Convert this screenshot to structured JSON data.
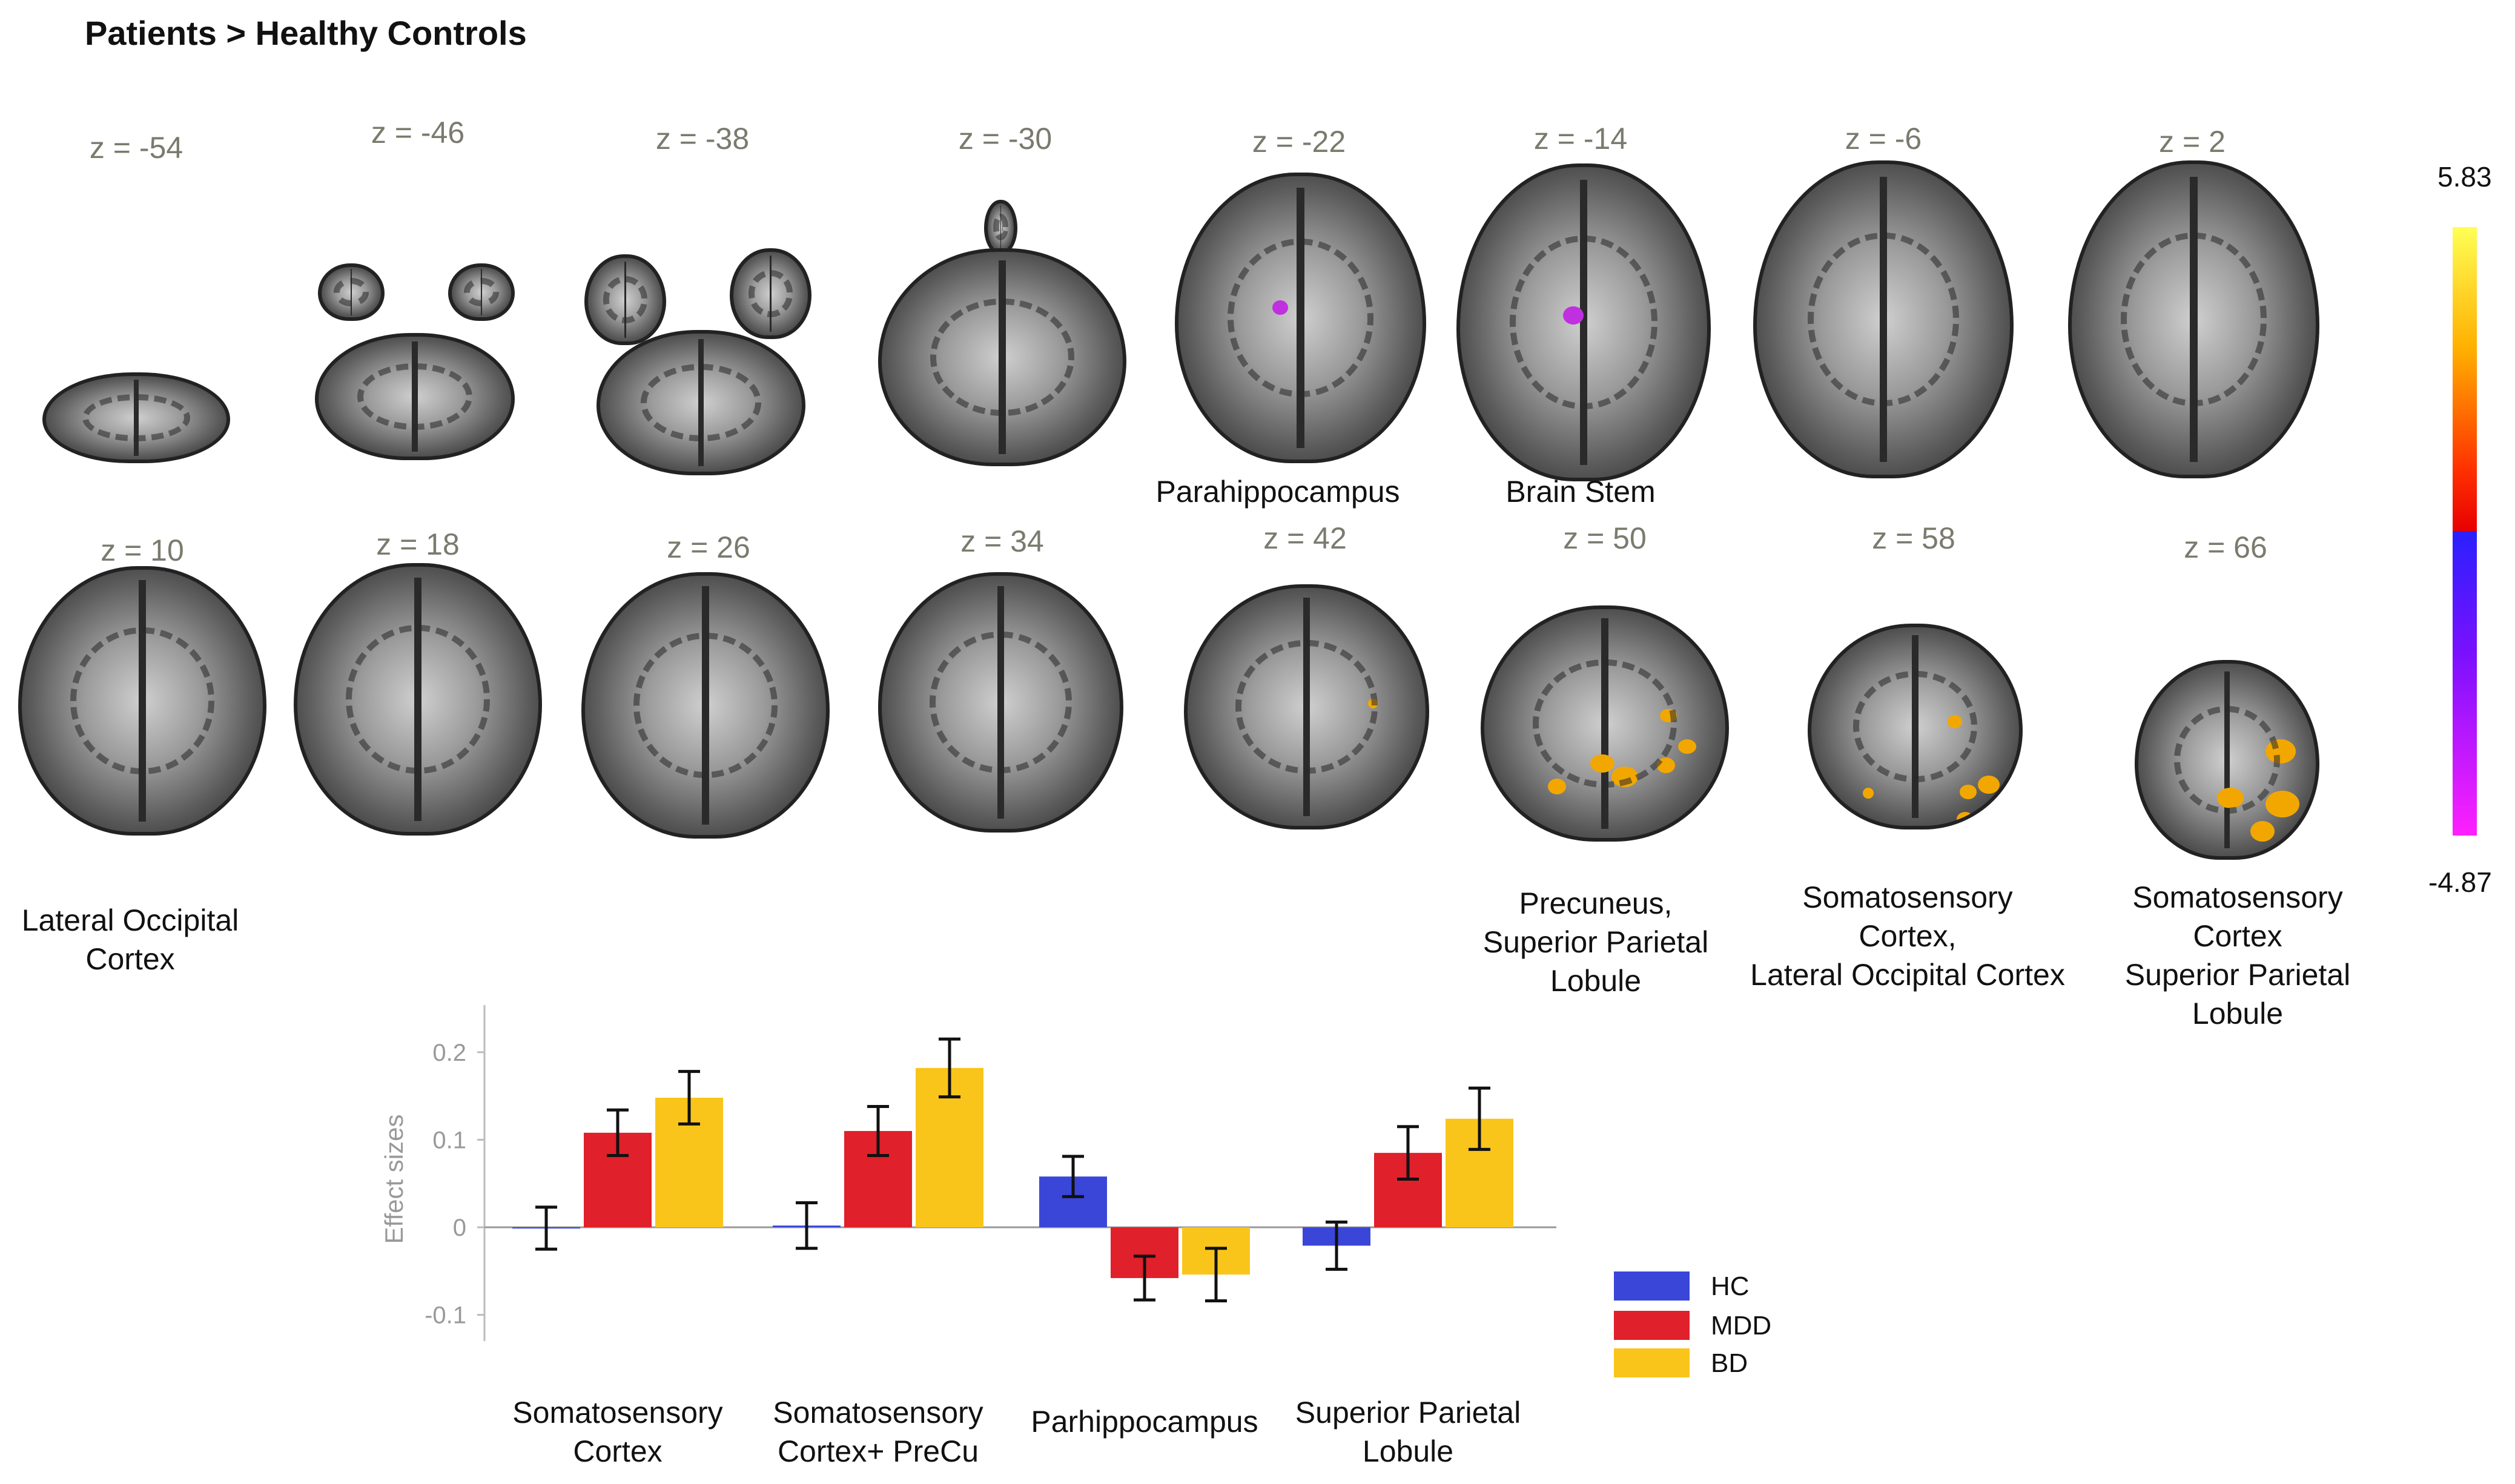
{
  "title": "Patients > Healthy Controls",
  "slices_row1": [
    {
      "z": "z = -54"
    },
    {
      "z": "z = -46"
    },
    {
      "z": "z = -38"
    },
    {
      "z": "z = -30"
    },
    {
      "z": "z = -22"
    },
    {
      "z": "z = -14"
    },
    {
      "z": "z = -6"
    },
    {
      "z": "z = 2"
    }
  ],
  "slices_row2": [
    {
      "z": "z = 10"
    },
    {
      "z": "z = 18"
    },
    {
      "z": "z = 26"
    },
    {
      "z": "z = 34"
    },
    {
      "z": "z = 42"
    },
    {
      "z": "z = 50"
    },
    {
      "z": "z = 58"
    },
    {
      "z": "z = 66"
    }
  ],
  "region_labels": {
    "parahippocampus": "Parahippocampus",
    "brain_stem": "Brain Stem",
    "loc_1": "Lateral Occipital",
    "loc_2": "Cortex",
    "pre_1": "Precuneus,",
    "pre_2": "Superior Parietal",
    "pre_3": "Lobule",
    "sl_1": "Somatosensory",
    "sl_2": "Cortex,",
    "sl_3": "Lateral Occipital Cortex",
    "ss_1": "Somatosensory",
    "ss_2": "Cortex",
    "ss_3": "Superior Parietal",
    "ss_4": "Lobule"
  },
  "colorbar": {
    "max": "5.83",
    "min": "-4.87"
  },
  "colors": {
    "HC": "#3a46d8",
    "MDD": "#e0202a",
    "BD": "#f9c51b",
    "activation": "#f2a700",
    "deactivation": "#c030e0"
  },
  "chart_data": {
    "type": "bar",
    "ylabel": "Effect sizes",
    "ylim": [
      -0.13,
      0.24
    ],
    "yticks": [
      "0.2",
      "0.1",
      "0",
      "-0.1"
    ],
    "categories": [
      [
        "Somatosensory",
        "Cortex"
      ],
      [
        "Somatosensory",
        "Cortex+ PreCu"
      ],
      [
        "Parhippocampus"
      ],
      [
        "Superior Parietal",
        "Lobule"
      ]
    ],
    "series": [
      {
        "name": "HC",
        "values": [
          -0.001,
          0.002,
          0.058,
          -0.021
        ],
        "err": [
          0.024,
          0.026,
          0.023,
          0.027
        ]
      },
      {
        "name": "MDD",
        "values": [
          0.108,
          0.11,
          -0.058,
          0.085
        ],
        "err": [
          0.026,
          0.028,
          0.025,
          0.03
        ]
      },
      {
        "name": "BD",
        "values": [
          0.148,
          0.182,
          -0.054,
          0.124
        ],
        "err": [
          0.03,
          0.033,
          0.03,
          0.035
        ]
      }
    ],
    "legend": "right"
  }
}
